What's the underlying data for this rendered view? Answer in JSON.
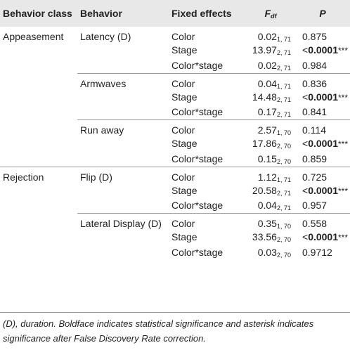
{
  "table": {
    "headers": {
      "behavior_class": "Behavior class",
      "behavior": "Behavior",
      "fixed_effects": "Fixed effects",
      "f_main": "F",
      "f_sub": "df",
      "p": "P"
    },
    "rows": [
      {
        "cls": "Appeasement",
        "beh": "Latency (D)",
        "fx": "Color",
        "f": "0.02",
        "df": "1, 71",
        "p": "0.875",
        "lt": "",
        "stars": ""
      },
      {
        "cls": "",
        "beh": "",
        "fx": "Stage",
        "f": "13.97",
        "df": "2, 71",
        "p": "0.0001",
        "lt": "<",
        "stars": "***"
      },
      {
        "cls": "",
        "beh": "",
        "fx": "Color*stage",
        "f": "0.02",
        "df": "2, 71",
        "p": "0.984",
        "lt": "",
        "stars": ""
      },
      {
        "cls": "",
        "beh": "Armwaves",
        "fx": "Color",
        "f": "0.04",
        "df": "1, 71",
        "p": "0.836",
        "lt": "",
        "stars": ""
      },
      {
        "cls": "",
        "beh": "",
        "fx": "Stage",
        "f": "14.48",
        "df": "2, 71",
        "p": "0.0001",
        "lt": "<",
        "stars": "***"
      },
      {
        "cls": "",
        "beh": "",
        "fx": "Color*stage",
        "f": "0.17",
        "df": "2, 71",
        "p": "0.841",
        "lt": "",
        "stars": ""
      },
      {
        "cls": "",
        "beh": "Run away",
        "fx": "Color",
        "f": "2.57",
        "df": "1, 70",
        "p": "0.114",
        "lt": "",
        "stars": ""
      },
      {
        "cls": "",
        "beh": "",
        "fx": "Stage",
        "f": "17.86",
        "df": "2, 70",
        "p": "0.0001",
        "lt": "<",
        "stars": "***"
      },
      {
        "cls": "",
        "beh": "",
        "fx": "Color*stage",
        "f": "0.15",
        "df": "2, 70",
        "p": "0.859",
        "lt": "",
        "stars": ""
      },
      {
        "cls": "Rejection",
        "beh": "Flip (D)",
        "fx": "Color",
        "f": "1.12",
        "df": "1, 71",
        "p": "0.725",
        "lt": "",
        "stars": ""
      },
      {
        "cls": "",
        "beh": "",
        "fx": "Stage",
        "f": "20.58",
        "df": "2, 71",
        "p": "0.0001",
        "lt": "<",
        "stars": "***"
      },
      {
        "cls": "",
        "beh": "",
        "fx": "Color*stage",
        "f": "0.04",
        "df": "2, 71",
        "p": "0.957",
        "lt": "",
        "stars": ""
      },
      {
        "cls": "",
        "beh": "Lateral Display (D)",
        "fx": "Color",
        "f": "0.35",
        "df": "1, 70",
        "p": "0.558",
        "lt": "",
        "stars": ""
      },
      {
        "cls": "",
        "beh": "",
        "fx": "Stage",
        "f": "33.56",
        "df": "2, 70",
        "p": "0.0001",
        "lt": "<",
        "stars": "***"
      },
      {
        "cls": "",
        "beh": "",
        "fx": "Color*stage",
        "f": "0.03",
        "df": "2, 70",
        "p": "0.9712",
        "lt": "",
        "stars": ""
      }
    ]
  },
  "footnote": "(D), duration. Boldface indicates statistical significance and asterisk indicates significance after False Discovery Rate correction.",
  "colors": {
    "header_bg": "#e8e8e8",
    "rule": "#9a9a9a",
    "text": "#222222"
  }
}
